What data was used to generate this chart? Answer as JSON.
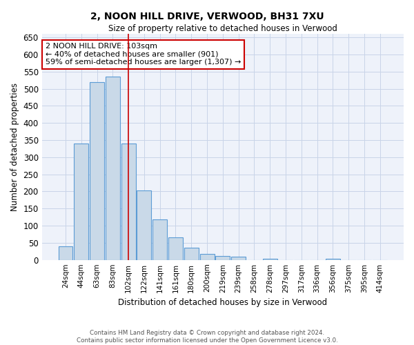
{
  "title": "2, NOON HILL DRIVE, VERWOOD, BH31 7XU",
  "subtitle": "Size of property relative to detached houses in Verwood",
  "xlabel": "Distribution of detached houses by size in Verwood",
  "ylabel": "Number of detached properties",
  "categories": [
    "24sqm",
    "44sqm",
    "63sqm",
    "83sqm",
    "102sqm",
    "122sqm",
    "141sqm",
    "161sqm",
    "180sqm",
    "200sqm",
    "219sqm",
    "239sqm",
    "258sqm",
    "278sqm",
    "297sqm",
    "317sqm",
    "336sqm",
    "356sqm",
    "375sqm",
    "395sqm",
    "414sqm"
  ],
  "values": [
    40,
    340,
    520,
    535,
    340,
    202,
    118,
    65,
    35,
    18,
    12,
    10,
    0,
    3,
    0,
    0,
    0,
    3,
    0,
    0,
    0
  ],
  "bar_color": "#c9d9e8",
  "bar_edgecolor": "#5b9bd5",
  "highlight_index": 4,
  "highlight_edgecolor": "#cc0000",
  "annotation_text": "2 NOON HILL DRIVE: 103sqm\n← 40% of detached houses are smaller (901)\n59% of semi-detached houses are larger (1,307) →",
  "annotation_box_edgecolor": "#cc0000",
  "ylim": [
    0,
    660
  ],
  "yticks": [
    0,
    50,
    100,
    150,
    200,
    250,
    300,
    350,
    400,
    450,
    500,
    550,
    600,
    650
  ],
  "grid_color": "#c8d4e8",
  "background_color": "#eef2fa",
  "footer_line1": "Contains HM Land Registry data © Crown copyright and database right 2024.",
  "footer_line2": "Contains public sector information licensed under the Open Government Licence v3.0."
}
